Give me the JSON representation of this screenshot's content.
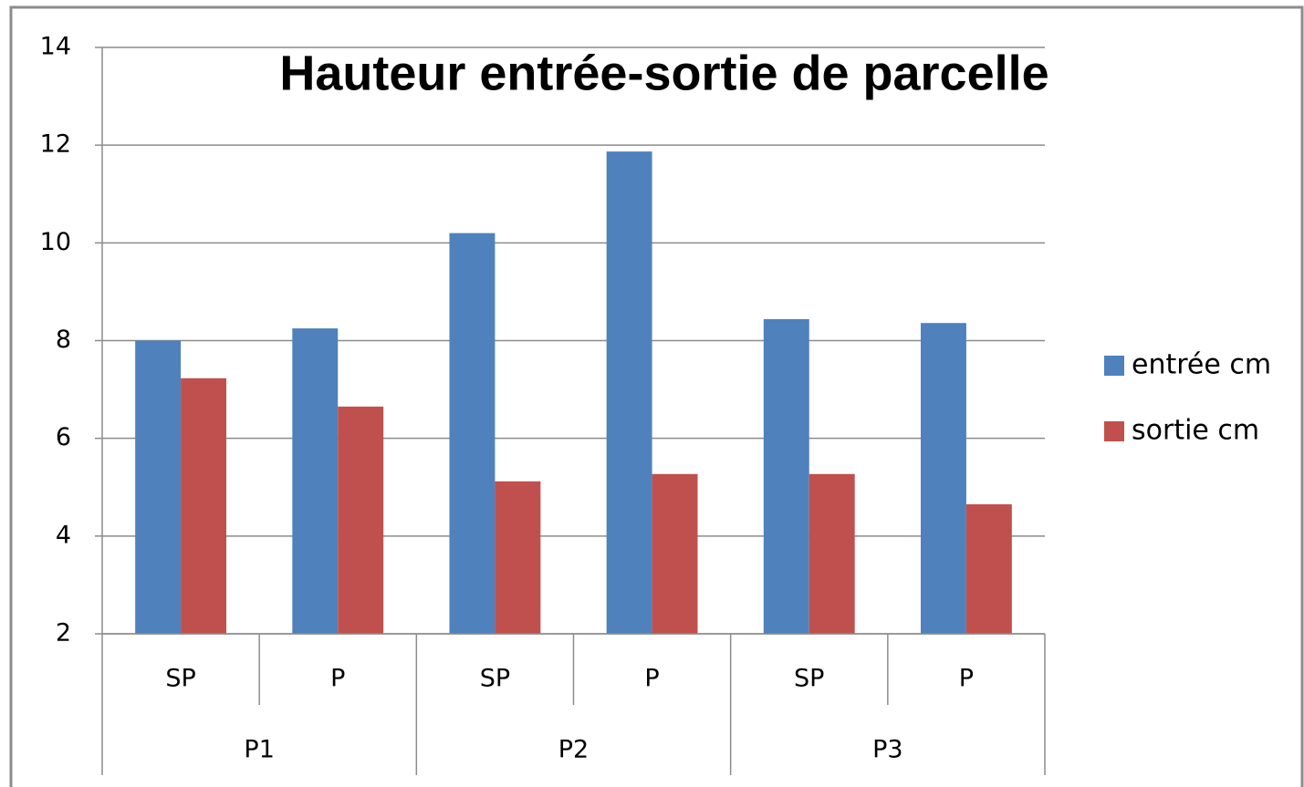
{
  "chart_data": {
    "type": "bar",
    "title": "Hauteur entrée-sortie de parcelle",
    "categories": [
      "SP",
      "P",
      "SP",
      "P",
      "SP",
      "P"
    ],
    "groups": [
      "P1",
      "P2",
      "P3"
    ],
    "series": [
      {
        "name": "entrée cm",
        "color": "#4f81bd",
        "values": [
          8.0,
          8.25,
          10.2,
          11.87,
          8.44,
          8.36
        ]
      },
      {
        "name": "sortie cm",
        "color": "#c0504d",
        "values": [
          7.23,
          6.65,
          5.12,
          5.27,
          5.27,
          4.65
        ]
      }
    ],
    "ylim": [
      2,
      14
    ],
    "yticks": [
      2,
      4,
      6,
      8,
      10,
      12,
      14
    ],
    "grid": true,
    "legend": "right"
  }
}
